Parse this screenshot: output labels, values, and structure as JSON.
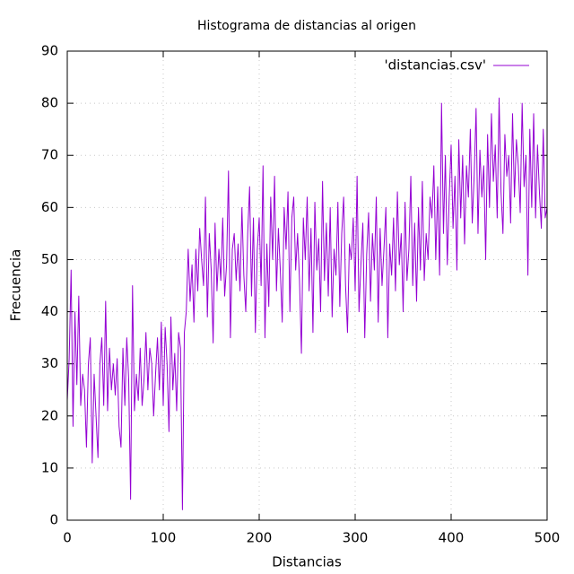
{
  "chart_data": {
    "type": "line",
    "title": "Histograma de distancias al origen",
    "x_label": "Distancias",
    "y_label": "Frecuencia",
    "xlim": [
      0,
      500
    ],
    "xticks": [
      0,
      100,
      200,
      300,
      400,
      500
    ],
    "ylim": [
      0,
      90
    ],
    "yticks": [
      0,
      10,
      20,
      30,
      40,
      50,
      60,
      70,
      80,
      90
    ],
    "grid": true,
    "legend": "top-right",
    "x": [
      0,
      2,
      4,
      6,
      8,
      10,
      12,
      14,
      16,
      18,
      20,
      22,
      24,
      26,
      28,
      30,
      32,
      34,
      36,
      38,
      40,
      42,
      44,
      46,
      48,
      50,
      52,
      54,
      56,
      58,
      60,
      62,
      64,
      66,
      68,
      70,
      72,
      74,
      76,
      78,
      80,
      82,
      84,
      86,
      88,
      90,
      92,
      94,
      96,
      98,
      100,
      102,
      104,
      106,
      108,
      110,
      112,
      114,
      116,
      118,
      120,
      122,
      124,
      126,
      128,
      130,
      132,
      134,
      136,
      138,
      140,
      142,
      144,
      146,
      148,
      150,
      152,
      154,
      156,
      158,
      160,
      162,
      164,
      166,
      168,
      170,
      172,
      174,
      176,
      178,
      180,
      182,
      184,
      186,
      188,
      190,
      192,
      194,
      196,
      198,
      200,
      202,
      204,
      206,
      208,
      210,
      212,
      214,
      216,
      218,
      220,
      222,
      224,
      226,
      228,
      230,
      232,
      234,
      236,
      238,
      240,
      242,
      244,
      246,
      248,
      250,
      252,
      254,
      256,
      258,
      260,
      262,
      264,
      266,
      268,
      270,
      272,
      274,
      276,
      278,
      280,
      282,
      284,
      286,
      288,
      290,
      292,
      294,
      296,
      298,
      300,
      302,
      304,
      306,
      308,
      310,
      312,
      314,
      316,
      318,
      320,
      322,
      324,
      326,
      328,
      330,
      332,
      334,
      336,
      338,
      340,
      342,
      344,
      346,
      348,
      350,
      352,
      354,
      356,
      358,
      360,
      362,
      364,
      366,
      368,
      370,
      372,
      374,
      376,
      378,
      380,
      382,
      384,
      386,
      388,
      390,
      392,
      394,
      396,
      398,
      400,
      402,
      404,
      406,
      408,
      410,
      412,
      414,
      416,
      418,
      420,
      422,
      424,
      426,
      428,
      430,
      432,
      434,
      436,
      438,
      440,
      442,
      444,
      446,
      448,
      450,
      452,
      454,
      456,
      458,
      460,
      462,
      464,
      466,
      468,
      470,
      472,
      474,
      476,
      478,
      480,
      482,
      484,
      486,
      488,
      490,
      492,
      494,
      496,
      498,
      500
    ],
    "series": [
      {
        "name": "'distancias.csv'",
        "color": "#9400d3",
        "values": [
          23,
          31,
          48,
          18,
          40,
          26,
          43,
          22,
          28,
          25,
          14,
          30,
          35,
          11,
          28,
          20,
          12,
          30,
          35,
          22,
          42,
          21,
          33,
          25,
          30,
          24,
          31,
          18,
          14,
          33,
          22,
          35,
          27,
          4,
          45,
          21,
          28,
          23,
          33,
          22,
          27,
          36,
          25,
          33,
          30,
          20,
          28,
          35,
          25,
          38,
          22,
          37,
          30,
          17,
          39,
          25,
          32,
          21,
          36,
          33,
          2,
          36,
          40,
          52,
          42,
          49,
          38,
          52,
          44,
          56,
          50,
          45,
          62,
          39,
          55,
          48,
          34,
          57,
          44,
          52,
          46,
          58,
          43,
          49,
          67,
          35,
          52,
          55,
          46,
          53,
          44,
          60,
          47,
          40,
          55,
          64,
          43,
          58,
          36,
          52,
          58,
          45,
          68,
          35,
          53,
          41,
          62,
          50,
          66,
          44,
          56,
          48,
          38,
          60,
          52,
          63,
          40,
          58,
          62,
          48,
          55,
          46,
          32,
          58,
          50,
          62,
          44,
          56,
          36,
          61,
          48,
          54,
          40,
          65,
          46,
          57,
          43,
          60,
          39,
          52,
          47,
          61,
          41,
          55,
          62,
          45,
          36,
          53,
          50,
          58,
          44,
          66,
          40,
          49,
          57,
          35,
          51,
          59,
          42,
          55,
          48,
          62,
          38,
          56,
          45,
          52,
          60,
          35,
          53,
          47,
          58,
          44,
          63,
          49,
          55,
          40,
          61,
          46,
          52,
          66,
          45,
          57,
          42,
          60,
          48,
          65,
          46,
          55,
          50,
          62,
          58,
          68,
          50,
          64,
          47,
          80,
          55,
          70,
          49,
          62,
          72,
          56,
          66,
          48,
          73,
          58,
          70,
          53,
          68,
          62,
          75,
          57,
          66,
          79,
          55,
          71,
          62,
          68,
          50,
          74,
          60,
          78,
          65,
          72,
          58,
          81,
          63,
          55,
          74,
          66,
          70,
          57,
          78,
          62,
          73,
          68,
          59,
          80,
          64,
          70,
          47,
          75,
          60,
          78,
          58,
          72,
          63,
          56,
          75,
          58,
          60
        ]
      }
    ]
  }
}
